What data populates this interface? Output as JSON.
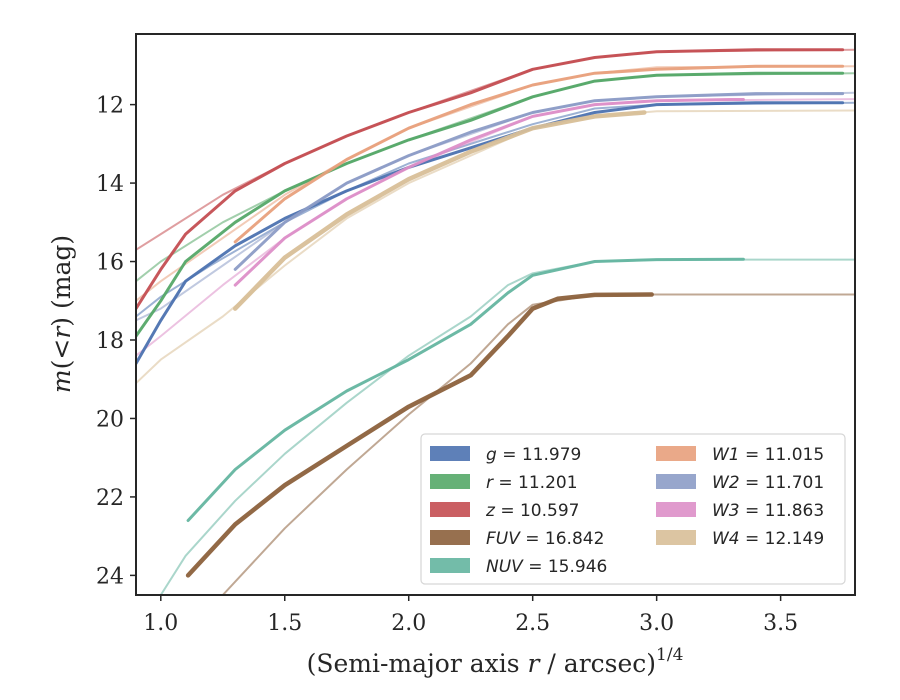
{
  "chart_data": {
    "type": "line",
    "title": "",
    "xlabel": "(Semi-major axis r / arcsec)",
    "xlabel_var": "r",
    "xlabel_pre": "(Semi-major axis ",
    "xlabel_post": " / arcsec)",
    "xlabel_exp": "1/4",
    "ylabel": "m(<r) (mag)",
    "ylabel_pre": "m",
    "ylabel_mid": "(<",
    "ylabel_var": "r",
    "ylabel_post": ") (mag)",
    "xlim": [
      0.9,
      3.8
    ],
    "ylim": [
      24.5,
      10.2
    ],
    "y_inverted": true,
    "x_ticks": [
      1.0,
      1.5,
      2.0,
      2.5,
      3.0,
      3.5
    ],
    "x_tick_labels": [
      "1.0",
      "1.5",
      "2.0",
      "2.5",
      "3.0",
      "3.5"
    ],
    "y_ticks": [
      12,
      14,
      16,
      18,
      20,
      22,
      24
    ],
    "y_tick_labels": [
      "12",
      "14",
      "16",
      "18",
      "20",
      "22",
      "24"
    ],
    "grid": false,
    "legend_position": "lower-right",
    "series": [
      {
        "name": "g",
        "value": "11.979",
        "color": "#4c72b0",
        "band": [
          [
            0.9,
            18.6
          ],
          [
            1.0,
            17.5
          ],
          [
            1.1,
            16.5
          ],
          [
            1.3,
            15.6
          ],
          [
            1.5,
            14.9
          ],
          [
            1.75,
            14.2
          ],
          [
            2.0,
            13.6
          ],
          [
            2.25,
            13.1
          ],
          [
            2.5,
            12.6
          ],
          [
            2.75,
            12.2
          ],
          [
            3.0,
            12.0
          ],
          [
            3.4,
            11.95
          ],
          [
            3.75,
            11.95
          ]
        ],
        "dashed": [
          [
            0.9,
            17.4
          ],
          [
            1.0,
            16.9
          ],
          [
            1.2,
            16.1
          ],
          [
            1.5,
            15.0
          ],
          [
            1.75,
            14.2
          ],
          [
            2.0,
            13.5
          ],
          [
            2.5,
            12.5
          ],
          [
            2.75,
            12.1
          ],
          [
            3.0,
            12.0
          ],
          [
            3.8,
            11.95
          ]
        ]
      },
      {
        "name": "r",
        "value": "11.201",
        "color": "#55a868",
        "band": [
          [
            0.9,
            17.9
          ],
          [
            1.0,
            17.0
          ],
          [
            1.1,
            16.0
          ],
          [
            1.3,
            15.0
          ],
          [
            1.5,
            14.2
          ],
          [
            1.75,
            13.5
          ],
          [
            2.0,
            12.9
          ],
          [
            2.25,
            12.4
          ],
          [
            2.5,
            11.8
          ],
          [
            2.75,
            11.4
          ],
          [
            3.0,
            11.25
          ],
          [
            3.4,
            11.2
          ],
          [
            3.75,
            11.2
          ]
        ],
        "dashed": [
          [
            0.9,
            16.5
          ],
          [
            1.0,
            16.0
          ],
          [
            1.25,
            15.0
          ],
          [
            1.5,
            14.2
          ],
          [
            1.75,
            13.5
          ],
          [
            2.0,
            12.9
          ],
          [
            2.5,
            11.8
          ],
          [
            2.75,
            11.4
          ],
          [
            3.0,
            11.25
          ],
          [
            3.8,
            11.2
          ]
        ]
      },
      {
        "name": "z",
        "value": "10.597",
        "color": "#c44e52",
        "band": [
          [
            0.9,
            17.2
          ],
          [
            1.0,
            16.2
          ],
          [
            1.1,
            15.3
          ],
          [
            1.3,
            14.2
          ],
          [
            1.5,
            13.5
          ],
          [
            1.75,
            12.8
          ],
          [
            2.0,
            12.2
          ],
          [
            2.25,
            11.7
          ],
          [
            2.5,
            11.1
          ],
          [
            2.75,
            10.8
          ],
          [
            3.0,
            10.65
          ],
          [
            3.4,
            10.6
          ],
          [
            3.75,
            10.6
          ]
        ],
        "dashed": [
          [
            0.9,
            15.7
          ],
          [
            1.0,
            15.3
          ],
          [
            1.25,
            14.3
          ],
          [
            1.5,
            13.5
          ],
          [
            1.75,
            12.8
          ],
          [
            2.0,
            12.2
          ],
          [
            2.5,
            11.1
          ],
          [
            2.75,
            10.8
          ],
          [
            3.0,
            10.65
          ],
          [
            3.8,
            10.6
          ]
        ]
      },
      {
        "name": "FUV",
        "value": "16.842",
        "color": "#8c613c",
        "band": [
          [
            1.11,
            24.0
          ],
          [
            1.3,
            22.7
          ],
          [
            1.5,
            21.7
          ],
          [
            1.75,
            20.7
          ],
          [
            2.0,
            19.7
          ],
          [
            2.25,
            18.9
          ],
          [
            2.4,
            17.9
          ],
          [
            2.5,
            17.2
          ],
          [
            2.6,
            16.95
          ],
          [
            2.75,
            16.85
          ],
          [
            2.98,
            16.84
          ]
        ],
        "dashed": [
          [
            1.25,
            24.5
          ],
          [
            1.5,
            22.8
          ],
          [
            1.75,
            21.3
          ],
          [
            2.0,
            19.9
          ],
          [
            2.25,
            18.6
          ],
          [
            2.4,
            17.6
          ],
          [
            2.5,
            17.1
          ],
          [
            2.75,
            16.85
          ],
          [
            3.0,
            16.84
          ],
          [
            3.8,
            16.84
          ]
        ]
      },
      {
        "name": "NUV",
        "value": "15.946",
        "color": "#64b5a0",
        "band": [
          [
            1.11,
            22.6
          ],
          [
            1.3,
            21.3
          ],
          [
            1.5,
            20.3
          ],
          [
            1.75,
            19.3
          ],
          [
            2.0,
            18.5
          ],
          [
            2.25,
            17.6
          ],
          [
            2.4,
            16.8
          ],
          [
            2.5,
            16.35
          ],
          [
            2.75,
            16.0
          ],
          [
            3.0,
            15.95
          ],
          [
            3.35,
            15.94
          ]
        ],
        "dashed": [
          [
            1.0,
            24.5
          ],
          [
            1.1,
            23.5
          ],
          [
            1.3,
            22.1
          ],
          [
            1.5,
            20.9
          ],
          [
            1.75,
            19.6
          ],
          [
            2.0,
            18.4
          ],
          [
            2.25,
            17.4
          ],
          [
            2.4,
            16.6
          ],
          [
            2.5,
            16.3
          ],
          [
            2.75,
            16.0
          ],
          [
            3.0,
            15.95
          ],
          [
            3.8,
            15.95
          ]
        ]
      },
      {
        "name": "W1",
        "value": "11.015",
        "color": "#e8a07c",
        "band": [
          [
            1.3,
            15.5
          ],
          [
            1.5,
            14.4
          ],
          [
            1.75,
            13.4
          ],
          [
            2.0,
            12.6
          ],
          [
            2.25,
            12.0
          ],
          [
            2.5,
            11.5
          ],
          [
            2.75,
            11.2
          ],
          [
            3.0,
            11.1
          ],
          [
            3.4,
            11.02
          ],
          [
            3.75,
            11.02
          ]
        ],
        "dashed": [
          [
            0.9,
            17.0
          ],
          [
            1.0,
            16.5
          ],
          [
            1.25,
            15.4
          ],
          [
            1.5,
            14.3
          ],
          [
            1.75,
            13.4
          ],
          [
            2.0,
            12.6
          ],
          [
            2.5,
            11.5
          ],
          [
            2.75,
            11.2
          ],
          [
            3.0,
            11.05
          ],
          [
            3.8,
            11.02
          ]
        ]
      },
      {
        "name": "W2",
        "value": "11.701",
        "color": "#8c9cc6",
        "band": [
          [
            1.3,
            16.2
          ],
          [
            1.5,
            15.0
          ],
          [
            1.75,
            14.0
          ],
          [
            2.0,
            13.3
          ],
          [
            2.25,
            12.7
          ],
          [
            2.5,
            12.2
          ],
          [
            2.75,
            11.9
          ],
          [
            3.0,
            11.8
          ],
          [
            3.4,
            11.72
          ],
          [
            3.75,
            11.72
          ]
        ],
        "dashed": [
          [
            0.9,
            17.5
          ],
          [
            1.0,
            17.2
          ],
          [
            1.25,
            16.1
          ],
          [
            1.5,
            15.0
          ],
          [
            1.75,
            14.0
          ],
          [
            2.0,
            13.3
          ],
          [
            2.5,
            12.2
          ],
          [
            2.75,
            11.9
          ],
          [
            3.0,
            11.8
          ],
          [
            3.8,
            11.7
          ]
        ]
      },
      {
        "name": "W3",
        "value": "11.863",
        "color": "#dd8fc8",
        "band": [
          [
            1.3,
            16.6
          ],
          [
            1.5,
            15.4
          ],
          [
            1.75,
            14.4
          ],
          [
            2.0,
            13.6
          ],
          [
            2.25,
            12.9
          ],
          [
            2.5,
            12.3
          ],
          [
            2.75,
            12.0
          ],
          [
            3.0,
            11.9
          ],
          [
            3.3,
            11.87
          ],
          [
            3.35,
            11.87
          ]
        ],
        "dashed": [
          [
            0.9,
            18.4
          ],
          [
            1.0,
            17.9
          ],
          [
            1.25,
            16.6
          ],
          [
            1.5,
            15.4
          ],
          [
            1.75,
            14.4
          ],
          [
            2.0,
            13.6
          ],
          [
            2.5,
            12.3
          ],
          [
            2.75,
            12.0
          ],
          [
            3.0,
            11.9
          ],
          [
            3.8,
            11.86
          ]
        ]
      },
      {
        "name": "W4",
        "value": "12.149",
        "color": "#d8bf98",
        "band": [
          [
            1.3,
            17.2
          ],
          [
            1.5,
            15.9
          ],
          [
            1.75,
            14.8
          ],
          [
            2.0,
            13.9
          ],
          [
            2.25,
            13.2
          ],
          [
            2.5,
            12.6
          ],
          [
            2.75,
            12.3
          ],
          [
            2.95,
            12.2
          ]
        ],
        "dashed": [
          [
            0.9,
            19.1
          ],
          [
            1.0,
            18.5
          ],
          [
            1.25,
            17.4
          ],
          [
            1.5,
            16.1
          ],
          [
            1.75,
            14.9
          ],
          [
            2.0,
            14.0
          ],
          [
            2.5,
            12.6
          ],
          [
            2.75,
            12.3
          ],
          [
            3.0,
            12.17
          ],
          [
            3.8,
            12.15
          ]
        ]
      }
    ]
  }
}
